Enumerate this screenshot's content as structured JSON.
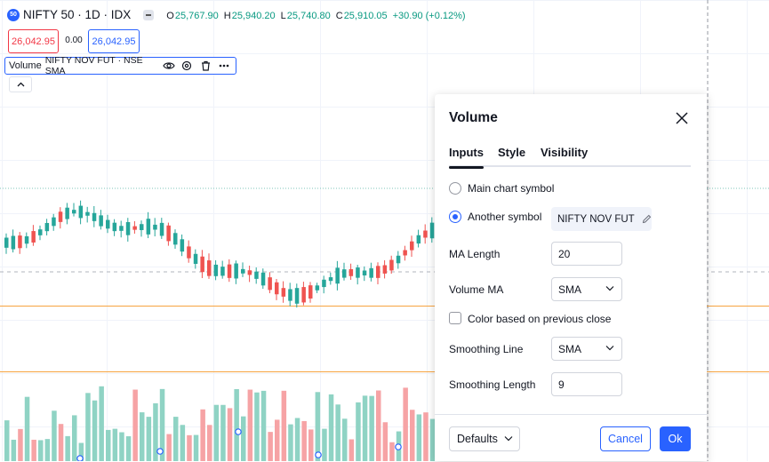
{
  "header": {
    "badge": "50",
    "symbol_title": "NIFTY 50 · 1D · IDX",
    "ohlc": [
      {
        "key": "O",
        "value": "25,767.90"
      },
      {
        "key": "H",
        "value": "25,940.20"
      },
      {
        "key": "L",
        "value": "25,740.80"
      },
      {
        "key": "C",
        "value": "25,910.05"
      },
      {
        "key": "",
        "value": "+30.90 (+0.12%)"
      }
    ]
  },
  "trade": {
    "sell": "26,042.95",
    "spread": "0.00",
    "buy": "26,042.95"
  },
  "indicator_legend": {
    "name": "Volume",
    "source": "NIFTY NOV FUT · NSE SMA"
  },
  "colors": {
    "up": "#26a69a",
    "down": "#ef5350",
    "vol_up": "#8fd3c4",
    "vol_down": "#f6a3a5",
    "accent": "#2962ff",
    "orange_line": "#f7a440"
  },
  "dialog": {
    "title": "Volume",
    "tabs": [
      "Inputs",
      "Style",
      "Visibility"
    ],
    "active_tab": "Inputs",
    "main_chart_symbol": "Main chart symbol",
    "another_symbol": "Another symbol",
    "symbol_value": "NIFTY NOV FUT",
    "selected_source": "Another symbol",
    "ma_length_label": "MA Length",
    "ma_length_value": "20",
    "volume_ma_label": "Volume MA",
    "volume_ma_value": "SMA",
    "color_prev_close_label": "Color based on previous close",
    "color_prev_close_checked": false,
    "smoothing_line_label": "Smoothing Line",
    "smoothing_line_value": "SMA",
    "smoothing_length_label": "Smoothing Length",
    "smoothing_length_value": "9",
    "defaults_label": "Defaults",
    "cancel_label": "Cancel",
    "ok_label": "Ok"
  }
}
